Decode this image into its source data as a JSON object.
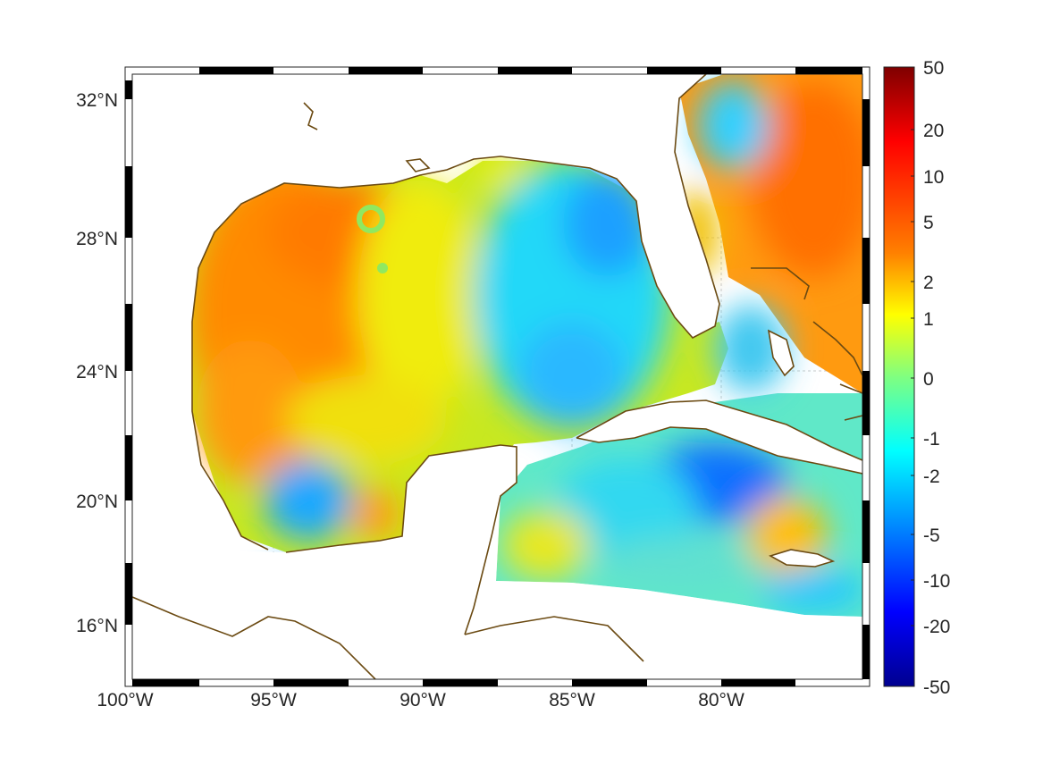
{
  "map": {
    "lat_ticks": [
      "32°N",
      "28°N",
      "24°N",
      "20°N",
      "16°N"
    ],
    "lon_ticks": [
      "100°W",
      "95°W",
      "90°W",
      "85°W",
      "80°W"
    ],
    "lat_range": [
      14.3,
      33.0
    ],
    "lon_range": [
      -100.0,
      -75.0
    ],
    "coastline_color": "#6b4a12",
    "grid": true,
    "frame_style": "alternating black and white"
  },
  "colorbar": {
    "tick_labels": [
      "50",
      "20",
      "10",
      "5",
      "2",
      "1",
      "0",
      "-1",
      "-2",
      "-5",
      "-10",
      "-20",
      "-50"
    ],
    "colormap": "jet",
    "colors": [
      "#7f0000",
      "#ff0000",
      "#ff8000",
      "#ffff00",
      "#80ff80",
      "#00ffff",
      "#0080ff",
      "#0000ff",
      "#00008f"
    ]
  }
}
